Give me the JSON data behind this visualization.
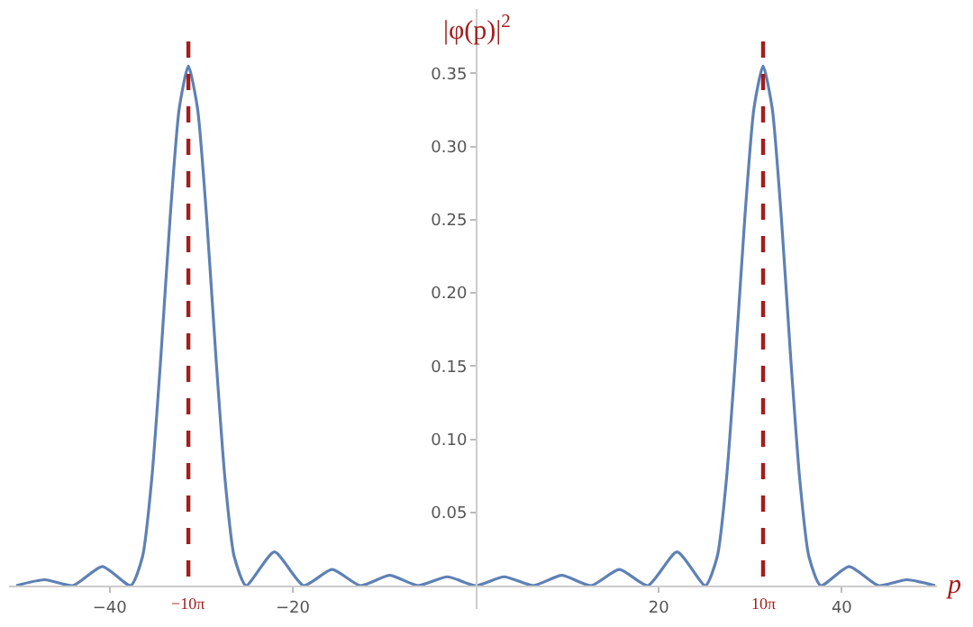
{
  "chart_data": {
    "type": "line",
    "xlabel": "p",
    "ylabel": "|φ(p)|$^{2}$",
    "x": [
      -50.2,
      -47.1,
      -44.0,
      -40.8,
      -37.7,
      -36.4,
      -35.4,
      -34.4,
      -33.4,
      -32.4,
      -31.4,
      -30.4,
      -29.4,
      -28.4,
      -27.4,
      -26.4,
      -25.1,
      -22.0,
      -18.8,
      -15.7,
      -12.6,
      -9.4,
      -6.3,
      -3.1,
      0,
      3.1,
      6.3,
      9.4,
      12.6,
      15.7,
      18.8,
      22.0,
      25.1,
      26.4,
      27.4,
      28.4,
      29.4,
      30.4,
      31.4,
      32.4,
      33.4,
      34.4,
      35.4,
      36.4,
      37.7,
      40.8,
      44.0,
      47.1,
      50.2
    ],
    "series": [
      {
        "color": "#5e81b5",
        "values": [
          0.0,
          0.004,
          0.0,
          0.013,
          0.0,
          0.02,
          0.073,
          0.157,
          0.251,
          0.326,
          0.355,
          0.326,
          0.251,
          0.157,
          0.073,
          0.02,
          0.0,
          0.023,
          0.0,
          0.011,
          0.0,
          0.007,
          0.0,
          0.006,
          0.0,
          0.006,
          0.0,
          0.007,
          0.0,
          0.011,
          0.0,
          0.023,
          0.0,
          0.02,
          0.073,
          0.157,
          0.251,
          0.326,
          0.355,
          0.326,
          0.251,
          0.157,
          0.073,
          0.02,
          0.0,
          0.013,
          0.0,
          0.004,
          0.0
        ]
      }
    ],
    "xlim": [
      -51,
      50.4
    ],
    "ylim": [
      -0.016,
      0.394
    ],
    "xticks": [
      {
        "value": -40,
        "label": "−40"
      },
      {
        "value": -20,
        "label": "−20"
      },
      20,
      40
    ],
    "yticks": [
      0.05,
      {
        "value": 0.1,
        "label": "0.10"
      },
      0.15,
      {
        "value": 0.2,
        "label": "0.20"
      },
      0.25,
      {
        "value": 0.3,
        "label": "0.30"
      },
      0.35
    ],
    "ref_lines": [
      {
        "axis": "x",
        "value": -31.4,
        "label": "−10π",
        "color": "#a31d1d",
        "line_style": "dashed"
      },
      {
        "axis": "x",
        "value": 31.4,
        "label": "10π",
        "color": "#a31d1d",
        "line_style": "dashed"
      }
    ],
    "marker": "none",
    "line_style": "solid"
  }
}
